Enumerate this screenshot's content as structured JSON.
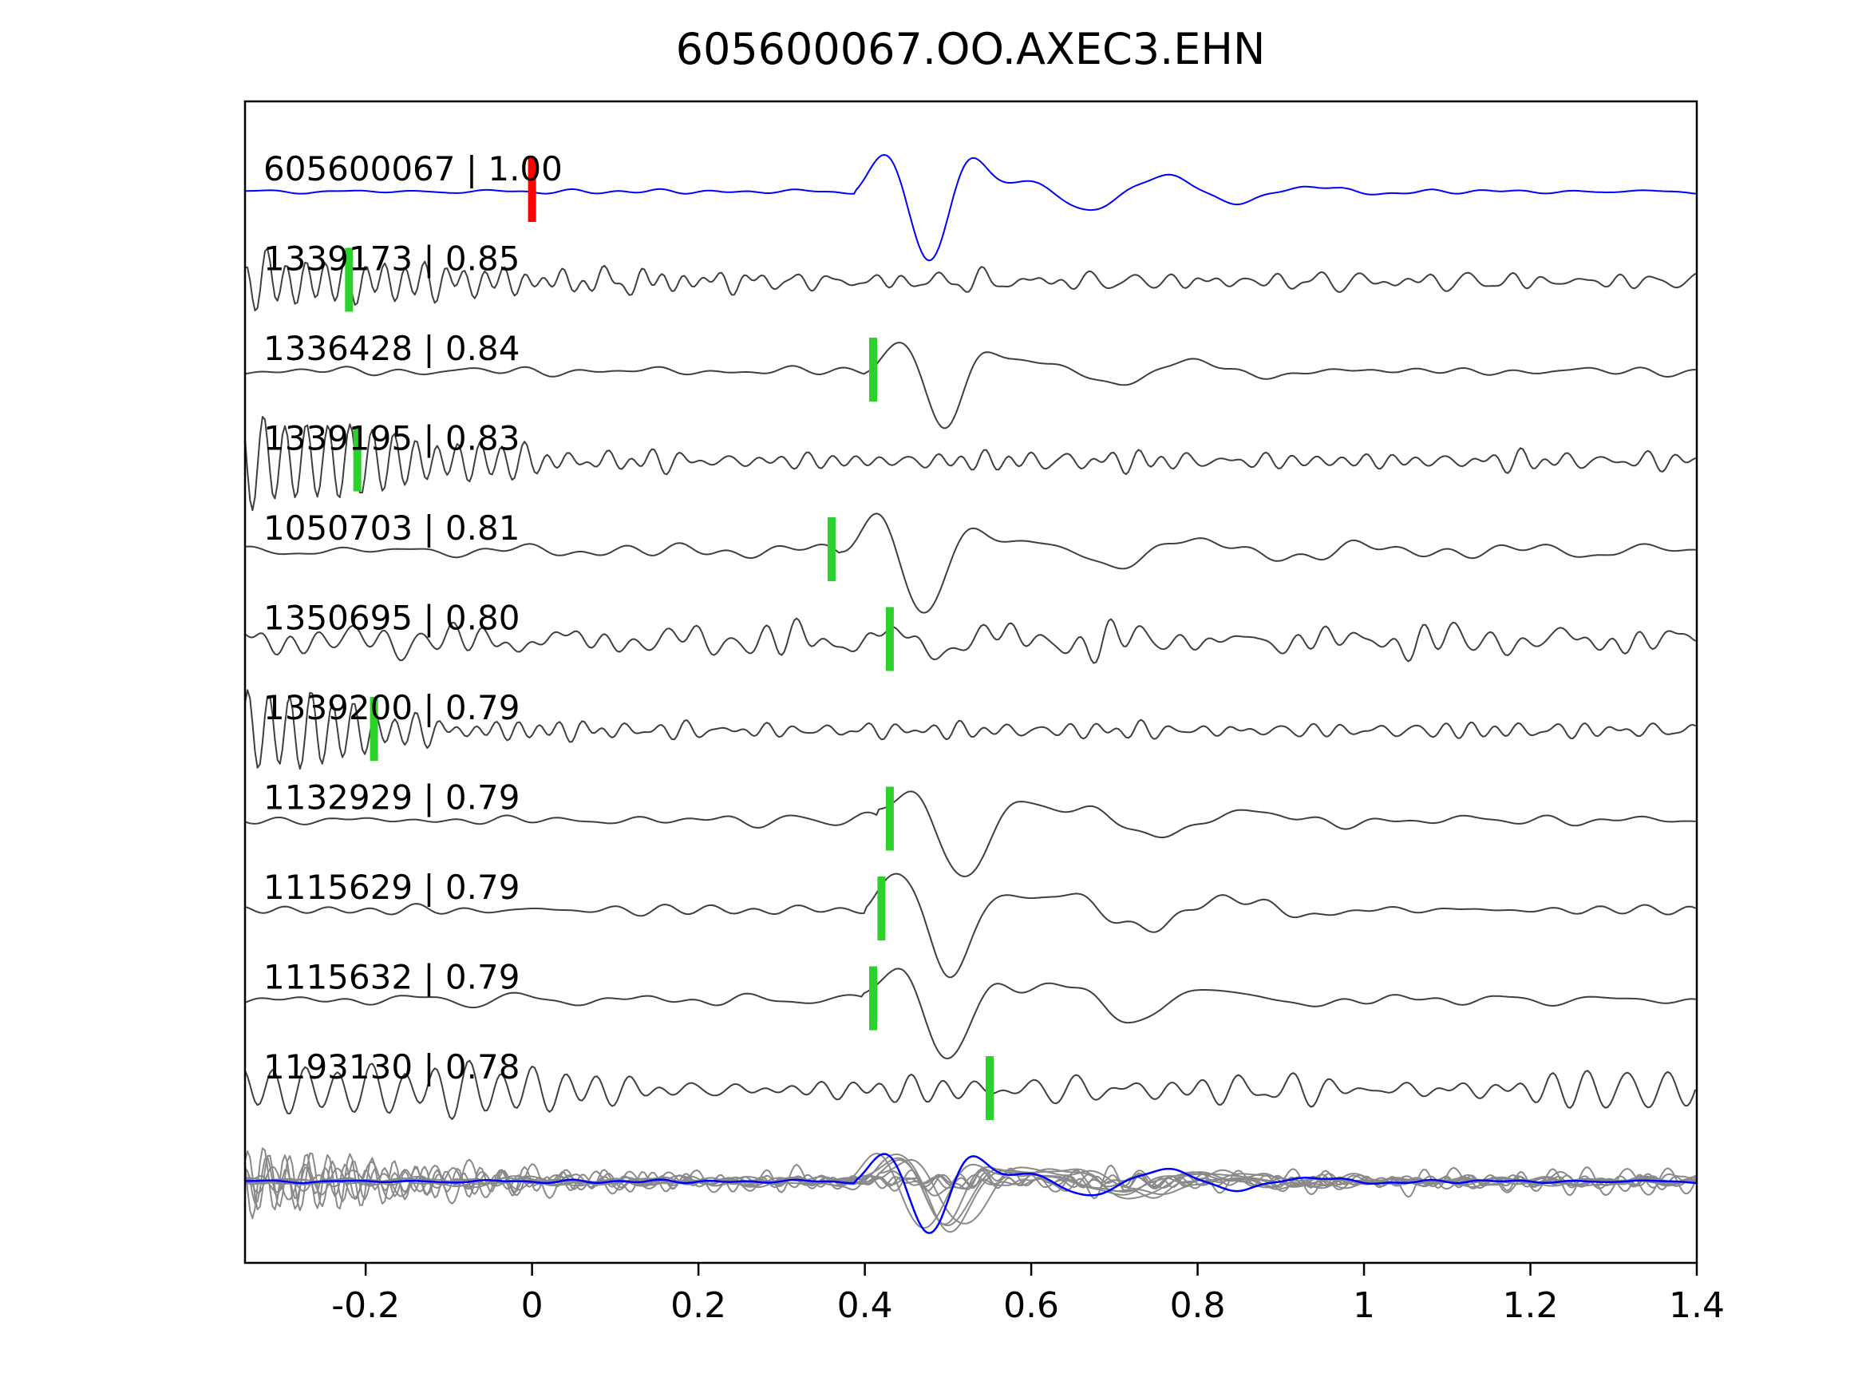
{
  "title": "605600067.OO.AXEC3.EHN",
  "chart_data": {
    "type": "line",
    "title": "605600067.OO.AXEC3.EHN",
    "xlabel": "",
    "ylabel": "",
    "xlim": [
      -0.345,
      1.4
    ],
    "x_ticks": [
      -0.2,
      0,
      0.2,
      0.4,
      0.6,
      0.8,
      1,
      1.2,
      1.4
    ],
    "x_tick_labels": [
      "-0.2",
      "0",
      "0.2",
      "0.4",
      "0.6",
      "0.8",
      "1",
      "1.2",
      "1.4"
    ],
    "grid": false,
    "legend": "none",
    "colors": {
      "template_trace": "#0000ff",
      "detection_trace": "#3f3f3f",
      "overlay_trace": "#8a8a8a",
      "template_pick": "#ff0000",
      "detection_pick": "#2bd22b",
      "axis": "#000000"
    },
    "description": "Template waveform (blue, top) compared against 10 detected event waveforms (dark gray) with pick-time markers; bottom row overlays all detections (gray) with the template (blue).",
    "traces": [
      {
        "id": "605600067",
        "cc": "1.00",
        "label": "605600067 | 1.00",
        "role": "template",
        "pick_time": 0.0,
        "pick_color": "template_pick",
        "synth": {
          "seed": 101,
          "noise_amp": 2.5,
          "noise_f": [
            5,
            20
          ],
          "event_amp": 78,
          "event_time": 0.388,
          "event_freq": 8.5,
          "event_phase": 0
        }
      },
      {
        "id": "1339173",
        "cc": "0.85",
        "label": "1339173 | 0.85",
        "role": "detection",
        "pick_time": -0.22,
        "pick_color": "detection_pick",
        "synth": {
          "seed": 202,
          "noise_amp": 10,
          "noise_f": [
            12,
            40
          ],
          "ring_amp": 58,
          "ring_freq": 42,
          "ring_decay": 3.8
        }
      },
      {
        "id": "1336428",
        "cc": "0.84",
        "label": "1336428 | 0.84",
        "role": "detection",
        "pick_time": 0.41,
        "pick_color": "detection_pick",
        "synth": {
          "seed": 303,
          "noise_amp": 6,
          "noise_f": [
            5,
            22
          ],
          "event_amp": 62,
          "event_time": 0.402,
          "event_freq": 8,
          "event_phase": 0
        }
      },
      {
        "id": "1339195",
        "cc": "0.83",
        "label": "1339195 | 0.83",
        "role": "detection",
        "pick_time": -0.21,
        "pick_color": "detection_pick",
        "synth": {
          "seed": 404,
          "noise_amp": 10,
          "noise_f": [
            12,
            40
          ],
          "ring_amp": 62,
          "ring_freq": 38,
          "ring_decay": 3.4
        }
      },
      {
        "id": "1050703",
        "cc": "0.81",
        "label": "1050703 | 0.81",
        "role": "detection",
        "pick_time": 0.36,
        "pick_color": "detection_pick",
        "synth": {
          "seed": 505,
          "noise_amp": 9,
          "noise_f": [
            3,
            18
          ],
          "event_amp": 72,
          "event_time": 0.372,
          "event_freq": 7.5,
          "event_phase": 0
        }
      },
      {
        "id": "1350695",
        "cc": "0.80",
        "label": "1350695 | 0.80",
        "role": "detection",
        "pick_time": 0.43,
        "pick_color": "detection_pick",
        "synth": {
          "seed": 606,
          "noise_amp": 19,
          "noise_f": [
            5,
            42
          ],
          "event_amp": 16,
          "event_time": 0.4,
          "event_freq": 9,
          "event_phase": 0
        }
      },
      {
        "id": "1339200",
        "cc": "0.79",
        "label": "1339200 | 0.79",
        "role": "detection",
        "pick_time": -0.19,
        "pick_color": "detection_pick",
        "synth": {
          "seed": 707,
          "noise_amp": 10,
          "noise_f": [
            12,
            40
          ],
          "ring_amp": 55,
          "ring_freq": 40,
          "ring_decay": 4.2
        }
      },
      {
        "id": "1132929",
        "cc": "0.79",
        "label": "1132929 | 0.79",
        "role": "detection",
        "pick_time": 0.43,
        "pick_color": "detection_pick",
        "synth": {
          "seed": 808,
          "noise_amp": 7,
          "noise_f": [
            4,
            20
          ],
          "event_amp": 70,
          "event_time": 0.415,
          "event_freq": 6.8,
          "event_phase": 0.3
        }
      },
      {
        "id": "1115629",
        "cc": "0.79",
        "label": "1115629 | 0.79",
        "role": "detection",
        "pick_time": 0.42,
        "pick_color": "detection_pick",
        "synth": {
          "seed": 909,
          "noise_amp": 6,
          "noise_f": [
            4,
            20
          ],
          "event_amp": 76,
          "event_time": 0.4,
          "event_freq": 7.0,
          "event_phase": 0.15
        }
      },
      {
        "id": "1115632",
        "cc": "0.79",
        "label": "1115632 | 0.79",
        "role": "detection",
        "pick_time": 0.41,
        "pick_color": "detection_pick",
        "synth": {
          "seed": 1010,
          "noise_amp": 7,
          "noise_f": [
            4,
            20
          ],
          "event_amp": 72,
          "event_time": 0.398,
          "event_freq": 7.2,
          "event_phase": 0.1
        }
      },
      {
        "id": "1193130",
        "cc": "0.78",
        "label": "1193130 | 0.78",
        "role": "detection",
        "pick_time": 0.55,
        "pick_color": "detection_pick",
        "synth": {
          "seed": 1111,
          "noise_amp": 14,
          "noise_f": [
            8,
            30
          ],
          "ring_amp": 52,
          "ring_freq": 26,
          "ring_decay": 2.0,
          "tail_amp": 26
        }
      }
    ],
    "overlay_row": {
      "content": "all detection traces overlaid in gray with template trace in blue"
    }
  }
}
